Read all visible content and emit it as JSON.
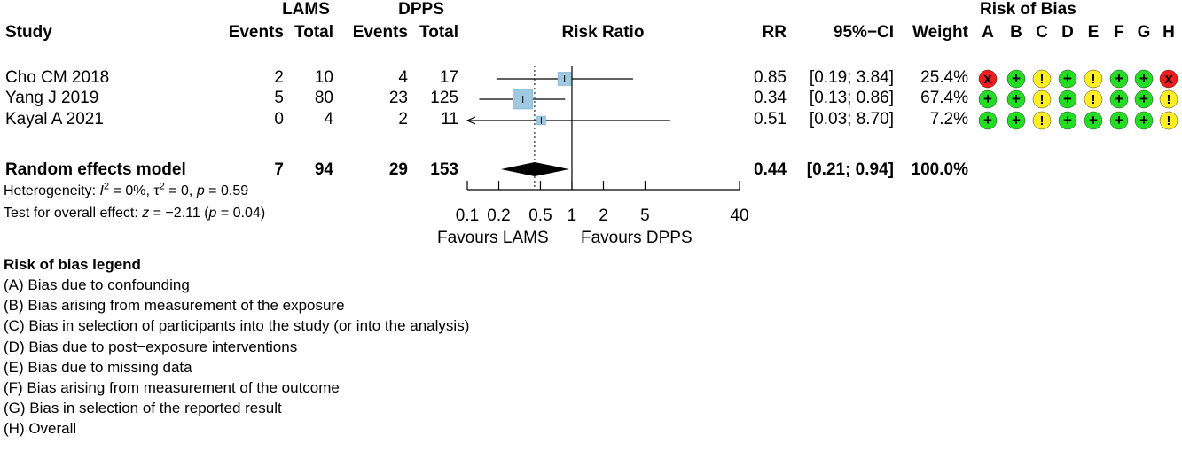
{
  "header": {
    "study": "Study",
    "lams": "LAMS",
    "dpps": "DPPS",
    "events_lams": "Events",
    "total_lams": "Total",
    "events_dpps": "Events",
    "total_dpps": "Total",
    "risk_ratio": "Risk Ratio",
    "rr": "RR",
    "ci": "95%−CI",
    "weight": "Weight",
    "rob": "Risk of Bias",
    "rob_cols": [
      "A",
      "B",
      "C",
      "D",
      "E",
      "F",
      "G",
      "H"
    ]
  },
  "studies": [
    {
      "name": "Cho CM 2018",
      "e1": "2",
      "t1": "10",
      "e2": "4",
      "t2": "17",
      "rr": "0.85",
      "ci": "[0.19; 3.84]",
      "weight": "25.4%",
      "rob": [
        "high",
        "low",
        "some",
        "low",
        "some",
        "low",
        "low",
        "high"
      ]
    },
    {
      "name": "Yang J 2019",
      "e1": "5",
      "t1": "80",
      "e2": "23",
      "t2": "125",
      "rr": "0.34",
      "ci": "[0.13; 0.86]",
      "weight": "67.4%",
      "rob": [
        "low",
        "low",
        "some",
        "low",
        "some",
        "low",
        "low",
        "some"
      ]
    },
    {
      "name": "Kayal A 2021",
      "e1": "0",
      "t1": "4",
      "e2": "2",
      "t2": "11",
      "rr": "0.51",
      "ci": "[0.03; 8.70]",
      "weight": "7.2%",
      "rob": [
        "low",
        "low",
        "some",
        "low",
        "low",
        "low",
        "low",
        "some"
      ]
    }
  ],
  "pooled": {
    "name": "Random effects model",
    "e1": "7",
    "t1": "94",
    "e2": "29",
    "t2": "153",
    "rr": "0.44",
    "ci": "[0.21; 0.94]",
    "weight": "100.0%"
  },
  "heterogeneity": {
    "pre": "Heterogeneity: ",
    "i2_sym": "I",
    "i2_val": " = 0%, ",
    "tau_sym": "τ",
    "tau_val": " = 0, ",
    "p_sym": "p",
    "p_val": " = 0.59"
  },
  "overall_test": {
    "pre": "Test for overall effect: ",
    "z_sym": "z",
    "z_val": " = −2.11 (",
    "p_sym": "p",
    "p_val": " = 0.04)"
  },
  "axis": {
    "ticks": [
      "0.1",
      "0.2",
      "0.5",
      "1",
      "2",
      "5",
      "40"
    ],
    "left_label": "Favours LAMS",
    "right_label": "Favours DPPS"
  },
  "legend": {
    "title": "Risk of bias legend",
    "items": [
      "(A) Bias due to confounding",
      "(B) Bias arising from measurement of the exposure",
      "(C) Bias in selection of participants into the study (or into the analysis)",
      "(D) Bias due to post−exposure interventions",
      "(E) Bias due to missing data",
      "(F) Bias arising from measurement of the outcome",
      "(G) Bias in selection of the reported result",
      "(H) Overall"
    ]
  },
  "rob_symbols": {
    "high": "x",
    "low": "+",
    "some": "!"
  },
  "colors": {
    "high": "#ee1c1c",
    "low": "#22dd22",
    "some": "#ffee22",
    "box": "#9ec9e0",
    "line": "#000000"
  },
  "chart_data": {
    "type": "forest",
    "x_scale": "log",
    "xlim": [
      0.1,
      40
    ],
    "x_ticks": [
      0.1,
      0.2,
      0.5,
      1,
      2,
      5,
      40
    ],
    "reference_line": 1,
    "pooled_dotted_line": 0.44,
    "series": [
      {
        "name": "Cho CM 2018",
        "rr": 0.85,
        "lower": 0.19,
        "upper": 3.84,
        "weight": 25.4
      },
      {
        "name": "Yang J 2019",
        "rr": 0.34,
        "lower": 0.13,
        "upper": 0.86,
        "weight": 67.4
      },
      {
        "name": "Kayal A 2021",
        "rr": 0.51,
        "lower": 0.03,
        "upper": 8.7,
        "weight": 7.2,
        "lower_truncated": true
      }
    ],
    "pooled": {
      "name": "Random effects model",
      "rr": 0.44,
      "lower": 0.21,
      "upper": 0.94
    }
  }
}
